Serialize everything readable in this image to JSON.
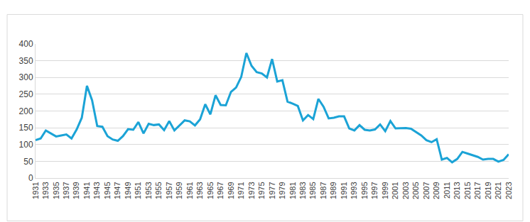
{
  "chart_data": {
    "type": "line",
    "color": "#1ba3d6",
    "grid": true,
    "x": [
      1931,
      1932,
      1933,
      1934,
      1935,
      1936,
      1937,
      1938,
      1939,
      1940,
      1941,
      1942,
      1943,
      1944,
      1945,
      1946,
      1947,
      1948,
      1949,
      1950,
      1951,
      1952,
      1953,
      1954,
      1955,
      1956,
      1957,
      1958,
      1959,
      1960,
      1961,
      1962,
      1963,
      1964,
      1965,
      1966,
      1967,
      1968,
      1969,
      1970,
      1971,
      1972,
      1973,
      1974,
      1975,
      1976,
      1977,
      1978,
      1979,
      1980,
      1981,
      1982,
      1983,
      1984,
      1985,
      1986,
      1987,
      1988,
      1989,
      1990,
      1991,
      1992,
      1993,
      1994,
      1995,
      1996,
      1997,
      1998,
      1999,
      2000,
      2001,
      2002,
      2003,
      2004,
      2005,
      2006,
      2007,
      2008,
      2009,
      2010,
      2011,
      2012,
      2013,
      2014,
      2015,
      2016,
      2017,
      2018,
      2019,
      2020,
      2021,
      2022,
      2023
    ],
    "values": [
      113,
      118,
      142,
      133,
      124,
      127,
      130,
      118,
      145,
      180,
      275,
      232,
      155,
      153,
      125,
      115,
      111,
      125,
      146,
      144,
      167,
      133,
      162,
      158,
      160,
      143,
      170,
      142,
      157,
      172,
      169,
      157,
      175,
      220,
      190,
      247,
      218,
      217,
      257,
      270,
      302,
      373,
      335,
      316,
      312,
      300,
      355,
      288,
      292,
      228,
      222,
      215,
      172,
      188,
      176,
      236,
      213,
      178,
      180,
      184,
      184,
      148,
      142,
      158,
      144,
      142,
      145,
      160,
      140,
      170,
      148,
      149,
      149,
      147,
      137,
      127,
      113,
      107,
      116,
      55,
      60,
      47,
      57,
      78,
      73,
      68,
      63,
      55,
      57,
      57,
      49,
      54,
      71
    ],
    "xlim": [
      1931,
      2023
    ],
    "xticks": [
      1931,
      1933,
      1935,
      1937,
      1939,
      1941,
      1943,
      1945,
      1947,
      1949,
      1951,
      1953,
      1955,
      1957,
      1959,
      1961,
      1963,
      1965,
      1967,
      1969,
      1971,
      1973,
      1975,
      1977,
      1979,
      1981,
      1983,
      1985,
      1987,
      1989,
      1991,
      1993,
      1995,
      1997,
      1999,
      2001,
      2003,
      2005,
      2007,
      2009,
      2011,
      2013,
      2015,
      2017,
      2019,
      2021,
      2023
    ],
    "ylim": [
      0,
      400
    ],
    "yticks": [
      0,
      50,
      100,
      150,
      200,
      250,
      300,
      350,
      400
    ]
  }
}
